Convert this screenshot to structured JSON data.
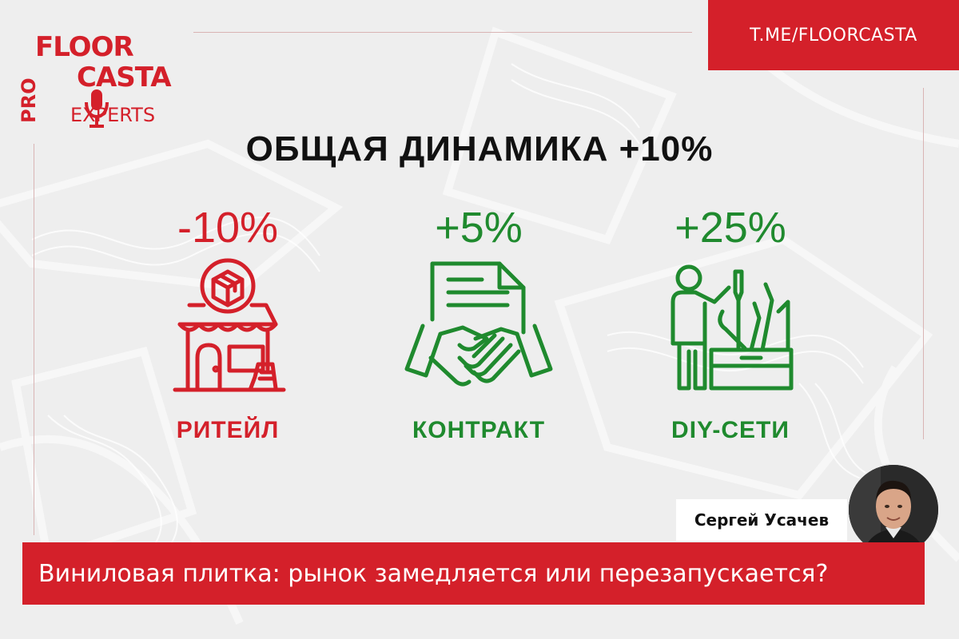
{
  "brand": {
    "logo_floor": "FLOOR",
    "logo_casta": "CASTA",
    "logo_pro": "PRO",
    "logo_experts": "EXPERTS",
    "color_red": "#d4202a",
    "color_green": "#1f8a2e"
  },
  "header": {
    "channel_link": "T.ME/FLOORCASTA"
  },
  "headline": "ОБЩАЯ ДИНАМИКА +10%",
  "segments": [
    {
      "percent": "-10%",
      "label": "РИТЕЙЛ",
      "icon": "store-icon",
      "color": "#d4202a"
    },
    {
      "percent": "+5%",
      "label": "КОНТРАКТ",
      "icon": "handshake-contract-icon",
      "color": "#1f8a2e"
    },
    {
      "percent": "+25%",
      "label": "DIY-СЕТИ",
      "icon": "diy-tools-icon",
      "color": "#1f8a2e"
    }
  ],
  "author": {
    "name": "Сергей Усачев"
  },
  "footer": {
    "title": "Виниловая плитка: рынок замедляется или перезапускается?"
  }
}
